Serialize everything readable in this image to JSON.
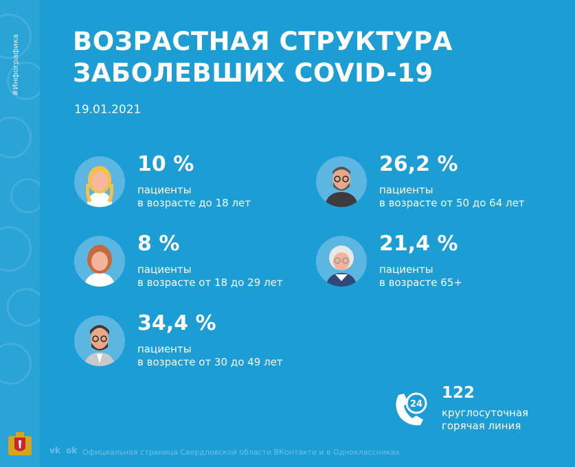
{
  "sidebar": {
    "hashtag": "#Инфографика"
  },
  "header": {
    "title_line1": "ВОЗРАСТНАЯ СТРУКТУРА",
    "title_line2": "ЗАБОЛЕВШИХ COVID-19",
    "date": "19.01.2021"
  },
  "groups": [
    {
      "percent": "10 %",
      "line1": "пациенты",
      "line2": "в возрасте до 18 лет",
      "avatar": "girl-avatar"
    },
    {
      "percent": "26,2 %",
      "line1": "пациенты",
      "line2": "в возрасте от 50 до 64 лет",
      "avatar": "bearded-man-glasses-avatar"
    },
    {
      "percent": "8 %",
      "line1": "пациенты",
      "line2": "в возрасте от 18 до 29 лет",
      "avatar": "young-woman-avatar"
    },
    {
      "percent": "21,4 %",
      "line1": "пациенты",
      "line2": "в возрасте 65+",
      "avatar": "elderly-woman-avatar"
    },
    {
      "percent": "34,4 %",
      "line1": "пациенты",
      "line2": "в возрасте от 30 до 49 лет",
      "avatar": "man-glasses-avatar"
    }
  ],
  "hotline": {
    "number": "122",
    "line1": "круглосуточная",
    "line2": "горячая линия",
    "icon": "phone-24-icon"
  },
  "footer": {
    "text": "Официальная страница Свердловской области ВКонтакте и в Одноклассниках",
    "vk": "vk",
    "ok": "ok"
  },
  "colors": {
    "background": "#1c9dd3",
    "avatar_bg": "#5cb6e2",
    "footer_text": "#6cc0e6"
  }
}
